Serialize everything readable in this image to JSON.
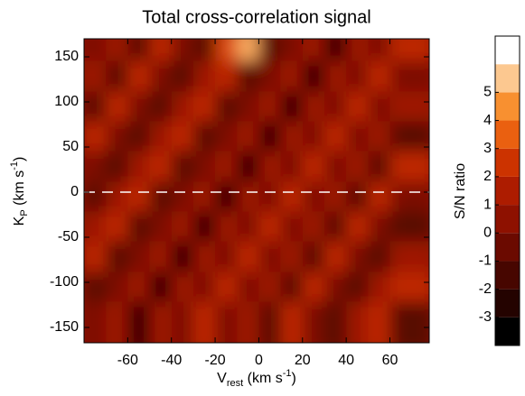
{
  "chart_data": {
    "type": "heatmap",
    "title": "Total cross-correlation signal",
    "xlabel": {
      "main": "V",
      "sub": "rest",
      "rest": " (km s",
      "sup": "-1",
      "end": ")"
    },
    "ylabel": {
      "main": "K",
      "sub": "P",
      "rest": " (km s",
      "sup": "-1",
      "end": ")"
    },
    "x": [
      -70,
      -60,
      -50,
      -40,
      -30,
      -20,
      -10,
      0,
      10,
      20,
      30,
      40,
      50,
      60,
      70
    ],
    "y": [
      150,
      117,
      83,
      50,
      17,
      -17,
      -50,
      -83,
      -117,
      -150
    ],
    "z": [
      [
        0,
        1,
        -1,
        2,
        0,
        -1,
        3,
        5,
        -1,
        0,
        1,
        -2,
        1,
        0,
        2
      ],
      [
        1,
        -1,
        2,
        0,
        -1,
        1,
        2,
        -1,
        0,
        1,
        -2,
        1,
        0,
        2,
        0
      ],
      [
        -1,
        2,
        0,
        -1,
        1,
        2,
        -1,
        0,
        1,
        -2,
        1,
        0,
        2,
        0,
        1
      ],
      [
        2,
        0,
        -1,
        1,
        2,
        -1,
        0,
        1,
        -2,
        1,
        0,
        2,
        0,
        1,
        -1
      ],
      [
        0,
        -1,
        1,
        2,
        -1,
        0,
        1,
        -2,
        1,
        0,
        2,
        0,
        1,
        -1,
        2
      ],
      [
        -1,
        1,
        2,
        -1,
        0,
        1,
        -2,
        1,
        0,
        2,
        0,
        1,
        -1,
        2,
        0
      ],
      [
        1,
        2,
        -1,
        0,
        1,
        -2,
        1,
        0,
        2,
        0,
        1,
        -1,
        2,
        0,
        -1
      ],
      [
        2,
        -1,
        0,
        1,
        -2,
        1,
        0,
        2,
        0,
        1,
        -1,
        2,
        0,
        -1,
        1
      ],
      [
        -1,
        0,
        1,
        -2,
        1,
        0,
        2,
        0,
        1,
        -1,
        2,
        0,
        -1,
        1,
        2
      ],
      [
        0,
        1,
        -2,
        1,
        0,
        2,
        0,
        1,
        -1,
        2,
        0,
        -1,
        1,
        2,
        -1
      ]
    ],
    "xlim": [
      -80,
      78
    ],
    "ylim": [
      -167,
      170
    ],
    "xticks": [
      -60,
      -40,
      -20,
      0,
      20,
      40,
      60
    ],
    "yticks": [
      -150,
      -100,
      -50,
      0,
      50,
      100,
      150
    ],
    "hline": 0,
    "colorbar": {
      "label": "S/N ratio",
      "lim": [
        -4,
        7
      ],
      "ticks": [
        -3,
        -2,
        -1,
        0,
        1,
        2,
        3,
        4,
        5
      ],
      "colors": [
        "#000000",
        "#240300",
        "#470600",
        "#6b0a00",
        "#8e1100",
        "#ad1c00",
        "#cc3300",
        "#ea6010",
        "#f89030",
        "#fcc890",
        "#ffffff"
      ]
    }
  }
}
